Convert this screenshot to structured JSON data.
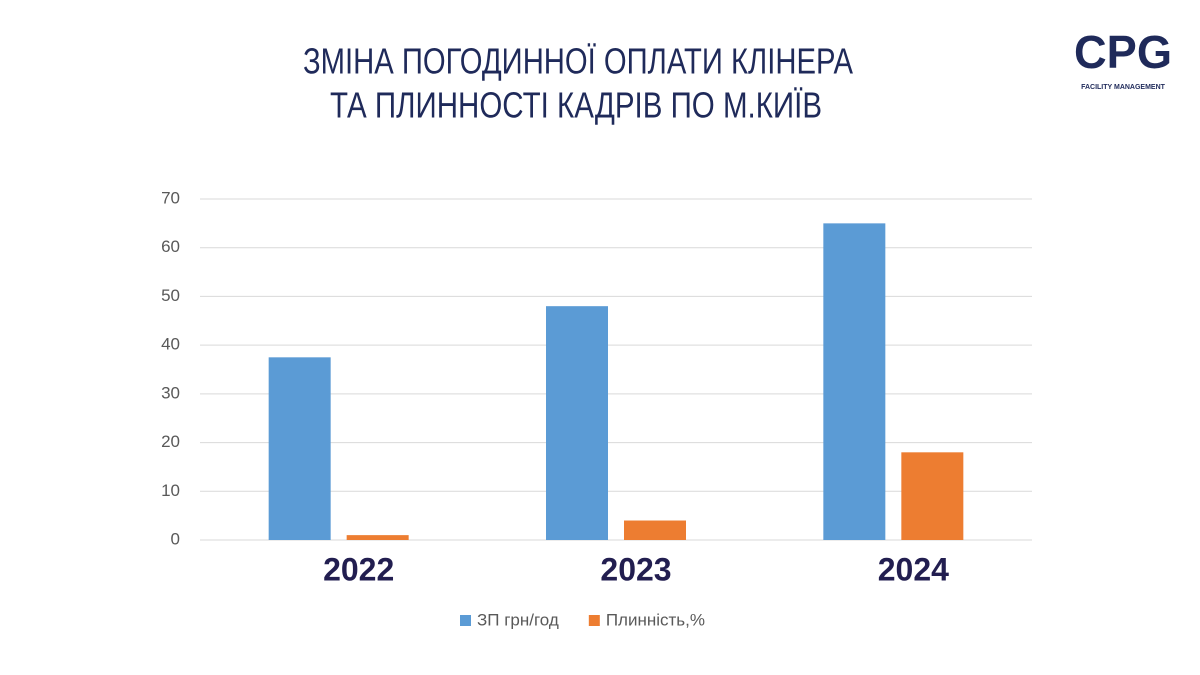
{
  "logo": {
    "text": "CPG",
    "tagline": "FACILITY MANAGEMENT"
  },
  "chart_data": {
    "type": "bar",
    "title": [
      "ЗМІНА ПОГОДИННОЇ ОПЛАТИ КЛІНЕРА",
      "ТА ПЛИННОСТІ КАДРІВ ПО М.КИЇВ"
    ],
    "categories": [
      "2022",
      "2023",
      "2024"
    ],
    "series": [
      {
        "name": "ЗП грн/год",
        "color": "#5b9bd5",
        "values": [
          37.5,
          48,
          65
        ]
      },
      {
        "name": "Плинність,%",
        "color": "#ed7d31",
        "values": [
          1,
          4,
          18
        ]
      }
    ],
    "ylim": [
      0,
      70
    ],
    "yticks": [
      0,
      10,
      20,
      30,
      40,
      50,
      60,
      70
    ],
    "grid": true,
    "legend": "bottom"
  }
}
